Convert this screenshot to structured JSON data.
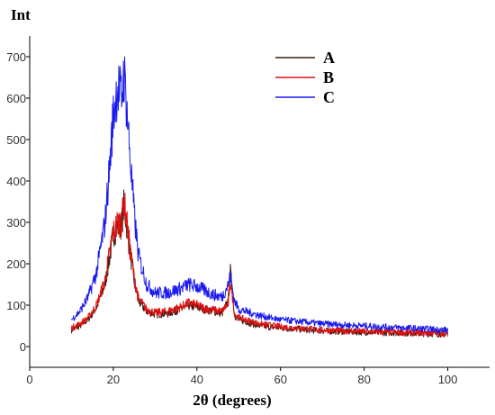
{
  "chart_data": {
    "type": "line",
    "title": "",
    "ylabel": "Int",
    "xlabel": "2θ (degrees)",
    "xlim": [
      0,
      110
    ],
    "ylim": [
      -50,
      750
    ],
    "x_ticks": [
      0,
      20,
      40,
      60,
      80,
      100
    ],
    "y_ticks": [
      0,
      100,
      200,
      300,
      400,
      500,
      600,
      700
    ],
    "grid": false,
    "legend_position": "top-right",
    "series": [
      {
        "name": "A",
        "color": "#3a1a12",
        "x": [
          10,
          12,
          14,
          16,
          18,
          19,
          20,
          21,
          22,
          22.5,
          23,
          24,
          25,
          26,
          28,
          30,
          33,
          36,
          38,
          40,
          42,
          44,
          46,
          47.5,
          48,
          49,
          50,
          55,
          60,
          70,
          80,
          90,
          100
        ],
        "y": [
          40,
          50,
          65,
          95,
          150,
          210,
          270,
          290,
          295,
          340,
          310,
          230,
          160,
          110,
          85,
          78,
          80,
          90,
          100,
          95,
          90,
          85,
          80,
          110,
          180,
          75,
          65,
          50,
          45,
          38,
          35,
          33,
          30
        ]
      },
      {
        "name": "B",
        "color": "#e01010",
        "x": [
          10,
          12,
          14,
          16,
          18,
          19,
          20,
          21,
          22,
          22.5,
          23,
          24,
          25,
          26,
          28,
          30,
          33,
          36,
          38,
          40,
          42,
          44,
          46,
          47.5,
          48,
          49,
          50,
          55,
          60,
          70,
          80,
          90,
          100
        ],
        "y": [
          45,
          55,
          70,
          100,
          160,
          220,
          275,
          300,
          300,
          355,
          320,
          235,
          165,
          115,
          90,
          82,
          85,
          95,
          105,
          100,
          92,
          88,
          85,
          105,
          160,
          80,
          70,
          55,
          48,
          40,
          36,
          34,
          32
        ]
      },
      {
        "name": "C",
        "color": "#1a1aee",
        "x": [
          10,
          12,
          14,
          16,
          18,
          19,
          20,
          21,
          22,
          22.5,
          23,
          24,
          25,
          26,
          28,
          30,
          33,
          36,
          38,
          40,
          42,
          44,
          46,
          47.5,
          48,
          49,
          50,
          55,
          60,
          70,
          80,
          90,
          100
        ],
        "y": [
          65,
          85,
          120,
          180,
          300,
          420,
          560,
          630,
          600,
          660,
          610,
          460,
          320,
          220,
          150,
          130,
          130,
          140,
          150,
          145,
          135,
          125,
          120,
          150,
          170,
          110,
          90,
          75,
          65,
          55,
          50,
          45,
          40
        ]
      }
    ]
  }
}
